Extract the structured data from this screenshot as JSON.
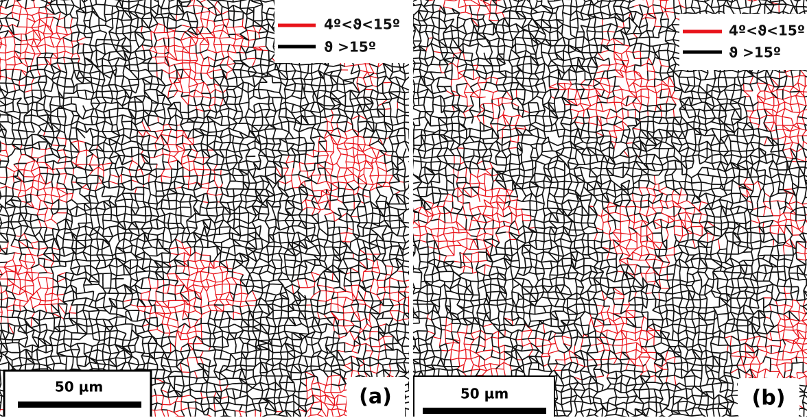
{
  "panels": [
    {
      "label": "(a)",
      "scale_bar": "50 µm",
      "legend": [
        {
          "text": "4º<ϑ<15º"
        },
        {
          "text": "ϑ >15º"
        }
      ]
    },
    {
      "label": "(b)",
      "scale_bar": "50 µm",
      "legend": [
        {
          "text": "4º<ϑ<15º"
        },
        {
          "text": "ϑ >15º"
        }
      ]
    }
  ]
}
